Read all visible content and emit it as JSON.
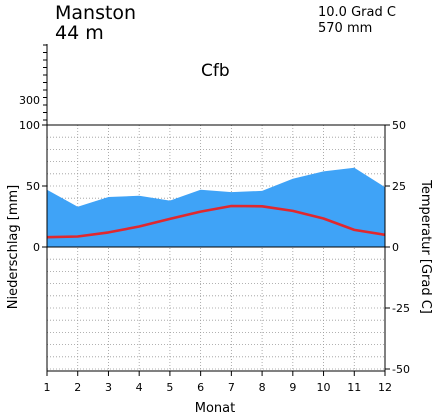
{
  "header": {
    "station": "Manston",
    "elevation": "44  m",
    "mean_temperature": "10.0  Grad C",
    "annual_precipitation": "570  mm",
    "climate_class": "Cfb"
  },
  "chart_data": {
    "type": "area",
    "x": [
      1,
      2,
      3,
      4,
      5,
      6,
      7,
      8,
      9,
      10,
      11,
      12
    ],
    "xlabel": "Monat",
    "ylabel": "Niederschlag [mm]",
    "ylabel_right": "Temperatur [Grad C]",
    "precip_ticks": [
      "0",
      "50",
      "100",
      "300"
    ],
    "temp_ticks": [
      "-50",
      "-25",
      "0",
      "25",
      "50"
    ],
    "x_ticks": [
      "1",
      "2",
      "3",
      "4",
      "5",
      "6",
      "7",
      "8",
      "9",
      "10",
      "11",
      "12"
    ],
    "xlim": [
      1,
      12
    ],
    "precip_ylim": [
      -100,
      100
    ],
    "temp_ylim": [
      -50,
      50
    ],
    "grid": true,
    "series": [
      {
        "kind": "precipitation",
        "chart": "area",
        "color": "#3fa3f7",
        "values": [
          47,
          33,
          41,
          42,
          38,
          47,
          45,
          46,
          56,
          62,
          65,
          49
        ]
      },
      {
        "kind": "temperature",
        "chart": "line",
        "color": "#e0282e",
        "values": [
          4.0,
          4.3,
          6.0,
          8.4,
          11.5,
          14.5,
          16.8,
          16.7,
          14.8,
          11.7,
          7.0,
          5.0
        ]
      }
    ]
  }
}
